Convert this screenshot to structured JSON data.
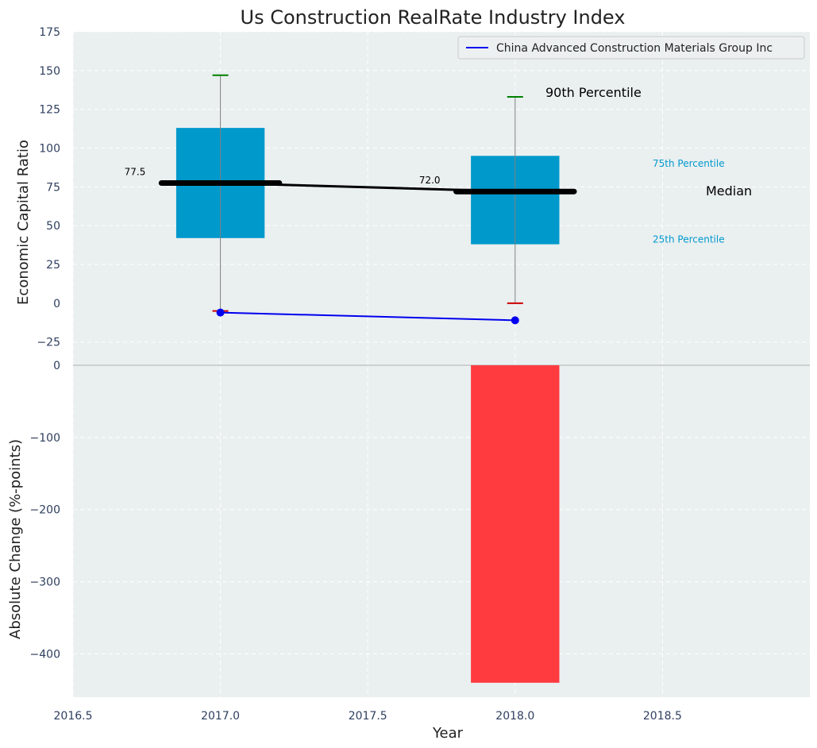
{
  "chart_data": {
    "type": "box",
    "title": "Us Construction RealRate Industry Index",
    "xlabel": "Year",
    "x_ticks": [
      "2016.5",
      "2017.0",
      "2017.5",
      "2018.0",
      "2018.5"
    ],
    "xlim": [
      2016.5,
      2019.0
    ],
    "top_panel": {
      "ylabel": "Economic Capital Ratio",
      "ylim": [
        -40,
        175
      ],
      "y_ticks": [
        "175",
        "150",
        "125",
        "100",
        "75",
        "50",
        "25",
        "0",
        "−25"
      ],
      "grid": true,
      "boxes": [
        {
          "x": 2017.0,
          "p25": 42,
          "p75": 113,
          "median": 77.5,
          "p10": -5,
          "p90": 147,
          "median_label": "77.5"
        },
        {
          "x": 2018.0,
          "p25": 38,
          "p75": 95,
          "median": 72.0,
          "p10": 0,
          "p90": 133,
          "median_label": "72.0"
        }
      ],
      "company_series": {
        "name": "China Advanced Construction Materials Group Inc",
        "color": "#0000ee",
        "x": [
          2017.0,
          2018.0
        ],
        "y": [
          -6,
          -11
        ]
      },
      "annotations": {
        "p90": "90th Percentile",
        "p75": "75th Percentile",
        "median": "Median",
        "p25": "25th Percentile"
      },
      "legend_position": "top-right"
    },
    "bottom_panel": {
      "ylabel": "Absolute Change (%-points)",
      "ylim": [
        -460,
        0
      ],
      "y_ticks": [
        "0",
        "−100",
        "−200",
        "−300",
        "−400"
      ],
      "grid": true,
      "bars": [
        {
          "x": 2018.0,
          "value": -440,
          "color": "#ff3b3f"
        }
      ]
    },
    "colors": {
      "box": "#0099cc",
      "median": "#000000",
      "p90_cap": "#008000",
      "p10_cap": "#cc0000",
      "panel_bg": "#eaeff0",
      "annotation_percentile": "#0099cc"
    }
  }
}
